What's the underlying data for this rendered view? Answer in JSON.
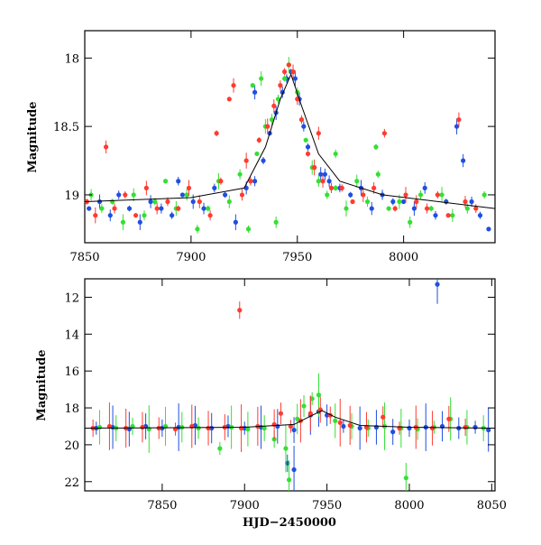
{
  "chart_data": [
    {
      "type": "scatter",
      "title": "",
      "xlabel": "",
      "ylabel": "Magnitude",
      "xlim": [
        7850,
        8043
      ],
      "ylim": [
        19.35,
        17.8
      ],
      "y_inverted": true,
      "grid": false,
      "x_ticks": [
        7850,
        7900,
        7950,
        8000
      ],
      "y_ticks": [
        18,
        18.5,
        19
      ],
      "series": [
        {
          "color": "#1f4fe0",
          "points": [
            [
              7852,
              19.1
            ],
            [
              7857,
              19.05
            ],
            [
              7862,
              19.15
            ],
            [
              7866,
              19.0
            ],
            [
              7871,
              19.1
            ],
            [
              7876,
              19.2
            ],
            [
              7881,
              19.05
            ],
            [
              7886,
              19.1
            ],
            [
              7891,
              19.15
            ],
            [
              7896,
              19.0
            ],
            [
              7901,
              19.05
            ],
            [
              7906,
              19.1
            ],
            [
              7911,
              18.95
            ],
            [
              7916,
              19.0
            ],
            [
              7921,
              19.2
            ],
            [
              7926,
              18.95
            ],
            [
              7930,
              18.9
            ],
            [
              7934,
              18.75
            ],
            [
              7937,
              18.55
            ],
            [
              7940,
              18.4
            ],
            [
              7943,
              18.25
            ],
            [
              7945,
              18.15
            ],
            [
              7947,
              18.1
            ],
            [
              7949,
              18.15
            ],
            [
              7951,
              18.3
            ],
            [
              7953,
              18.5
            ],
            [
              7955,
              18.65
            ],
            [
              7958,
              18.8
            ],
            [
              7961,
              18.85
            ],
            [
              7965,
              18.9
            ],
            [
              7970,
              18.95
            ],
            [
              7975,
              19.0
            ],
            [
              7980,
              18.95
            ],
            [
              7985,
              19.1
            ],
            [
              7990,
              19.0
            ],
            [
              7995,
              19.05
            ],
            [
              8000,
              19.05
            ],
            [
              8005,
              19.1
            ],
            [
              8010,
              18.95
            ],
            [
              8015,
              19.15
            ],
            [
              8020,
              19.05
            ],
            [
              8025,
              18.5
            ],
            [
              8028,
              18.75
            ],
            [
              8032,
              19.05
            ],
            [
              8036,
              19.15
            ],
            [
              8040,
              19.25
            ],
            [
              7930,
              18.25
            ],
            [
              7963,
              18.85
            ],
            [
              7894,
              18.9
            ]
          ]
        },
        {
          "color": "#33e033",
          "points": [
            [
              7853,
              19.0
            ],
            [
              7858,
              19.1
            ],
            [
              7863,
              19.05
            ],
            [
              7868,
              19.2
            ],
            [
              7873,
              19.0
            ],
            [
              7878,
              19.15
            ],
            [
              7883,
              19.05
            ],
            [
              7888,
              18.9
            ],
            [
              7893,
              19.1
            ],
            [
              7898,
              19.0
            ],
            [
              7903,
              19.25
            ],
            [
              7908,
              19.1
            ],
            [
              7913,
              18.9
            ],
            [
              7918,
              19.05
            ],
            [
              7923,
              18.85
            ],
            [
              7927,
              19.25
            ],
            [
              7931,
              18.7
            ],
            [
              7935,
              18.5
            ],
            [
              7938,
              18.45
            ],
            [
              7941,
              18.3
            ],
            [
              7944,
              18.15
            ],
            [
              7946,
              18.05
            ],
            [
              7948,
              18.1
            ],
            [
              7950,
              18.25
            ],
            [
              7952,
              18.45
            ],
            [
              7954,
              18.6
            ],
            [
              7957,
              18.8
            ],
            [
              7960,
              18.9
            ],
            [
              7964,
              19.0
            ],
            [
              7968,
              18.95
            ],
            [
              7973,
              19.1
            ],
            [
              7978,
              18.9
            ],
            [
              7983,
              19.05
            ],
            [
              7988,
              18.85
            ],
            [
              7993,
              19.1
            ],
            [
              7998,
              19.05
            ],
            [
              8003,
              19.2
            ],
            [
              8008,
              19.0
            ],
            [
              8013,
              19.1
            ],
            [
              8018,
              19.0
            ],
            [
              8023,
              19.15
            ],
            [
              8030,
              19.1
            ],
            [
              8038,
              19.0
            ],
            [
              7929,
              18.2
            ],
            [
              7933,
              18.15
            ],
            [
              7940,
              19.2
            ],
            [
              7968,
              18.7
            ],
            [
              7987,
              18.65
            ]
          ]
        },
        {
          "color": "#ff3b2f",
          "points": [
            [
              7851,
              19.05
            ],
            [
              7855,
              19.15
            ],
            [
              7860,
              18.65
            ],
            [
              7864,
              19.1
            ],
            [
              7869,
              19.0
            ],
            [
              7874,
              19.15
            ],
            [
              7879,
              18.95
            ],
            [
              7884,
              19.1
            ],
            [
              7889,
              19.05
            ],
            [
              7894,
              19.1
            ],
            [
              7899,
              18.95
            ],
            [
              7904,
              19.05
            ],
            [
              7909,
              19.15
            ],
            [
              7914,
              18.9
            ],
            [
              7918,
              18.3
            ],
            [
              7920,
              18.2
            ],
            [
              7924,
              19.0
            ],
            [
              7928,
              18.9
            ],
            [
              7932,
              18.6
            ],
            [
              7936,
              18.5
            ],
            [
              7939,
              18.35
            ],
            [
              7942,
              18.2
            ],
            [
              7944,
              18.1
            ],
            [
              7946,
              18.05
            ],
            [
              7948,
              18.1
            ],
            [
              7950,
              18.3
            ],
            [
              7952,
              18.45
            ],
            [
              7955,
              18.7
            ],
            [
              7958,
              18.8
            ],
            [
              7962,
              18.9
            ],
            [
              7966,
              18.95
            ],
            [
              7971,
              18.95
            ],
            [
              7976,
              19.05
            ],
            [
              7981,
              19.0
            ],
            [
              7986,
              18.95
            ],
            [
              7991,
              18.55
            ],
            [
              7996,
              19.1
            ],
            [
              8001,
              19.0
            ],
            [
              8006,
              19.05
            ],
            [
              8011,
              19.1
            ],
            [
              8016,
              19.0
            ],
            [
              8021,
              19.15
            ],
            [
              8026,
              18.45
            ],
            [
              8029,
              19.05
            ],
            [
              8034,
              19.1
            ],
            [
              7912,
              18.55
            ],
            [
              7926,
              18.75
            ],
            [
              7960,
              18.55
            ]
          ]
        }
      ],
      "model_curve": [
        [
          7850,
          19.05
        ],
        [
          7900,
          19.02
        ],
        [
          7925,
          18.95
        ],
        [
          7935,
          18.65
        ],
        [
          7942,
          18.3
        ],
        [
          7947,
          18.12
        ],
        [
          7952,
          18.35
        ],
        [
          7960,
          18.7
        ],
        [
          7970,
          18.9
        ],
        [
          7990,
          19.0
        ],
        [
          8043,
          19.1
        ]
      ]
    },
    {
      "type": "scatter",
      "title": "",
      "xlabel": "HJD−2450000",
      "ylabel": "Magnitude",
      "xlim": [
        7803,
        8052
      ],
      "ylim": [
        22.5,
        11
      ],
      "y_inverted": true,
      "grid": false,
      "x_ticks": [
        7850,
        7900,
        7950,
        8000,
        8050
      ],
      "y_ticks": [
        12,
        14,
        16,
        18,
        20,
        22
      ],
      "series": [
        {
          "color": "#1f4fe0",
          "points": [
            [
              7810,
              19.1
            ],
            [
              7820,
              19.05
            ],
            [
              7830,
              19.15
            ],
            [
              7840,
              19.0
            ],
            [
              7850,
              19.1
            ],
            [
              7860,
              19.05
            ],
            [
              7870,
              18.95
            ],
            [
              7880,
              19.1
            ],
            [
              7890,
              19.0
            ],
            [
              7900,
              19.1
            ],
            [
              7910,
              19.05
            ],
            [
              7920,
              19.0
            ],
            [
              7930,
              19.2
            ],
            [
              7926,
              21.0
            ],
            [
              7930,
              21.35
            ],
            [
              7940,
              18.4
            ],
            [
              7945,
              18.2
            ],
            [
              7950,
              18.4
            ],
            [
              7960,
              19.0
            ],
            [
              7970,
              19.1
            ],
            [
              7980,
              19.05
            ],
            [
              7990,
              19.3
            ],
            [
              8000,
              19.1
            ],
            [
              8010,
              19.05
            ],
            [
              8017,
              11.3
            ],
            [
              8020,
              19.0
            ],
            [
              8030,
              19.1
            ],
            [
              8040,
              19.05
            ],
            [
              8048,
              19.2
            ]
          ]
        },
        {
          "color": "#33e033",
          "points": [
            [
              7812,
              19.05
            ],
            [
              7822,
              19.1
            ],
            [
              7832,
              19.0
            ],
            [
              7842,
              19.15
            ],
            [
              7852,
              19.0
            ],
            [
              7862,
              19.05
            ],
            [
              7872,
              19.1
            ],
            [
              7885,
              20.2
            ],
            [
              7892,
              19.05
            ],
            [
              7902,
              19.15
            ],
            [
              7912,
              19.1
            ],
            [
              7918,
              19.7
            ],
            [
              7925,
              20.2
            ],
            [
              7927,
              21.9
            ],
            [
              7932,
              18.6
            ],
            [
              7936,
              17.9
            ],
            [
              7941,
              17.5
            ],
            [
              7945,
              17.3
            ],
            [
              7955,
              18.7
            ],
            [
              7965,
              19.0
            ],
            [
              7975,
              19.1
            ],
            [
              7985,
              19.0
            ],
            [
              7995,
              19.1
            ],
            [
              7998,
              21.8
            ],
            [
              8005,
              19.15
            ],
            [
              8015,
              19.05
            ],
            [
              8025,
              18.6
            ],
            [
              8035,
              19.05
            ],
            [
              8045,
              19.1
            ]
          ]
        },
        {
          "color": "#ff3b2f",
          "points": [
            [
              7808,
              19.1
            ],
            [
              7818,
              19.0
            ],
            [
              7828,
              19.1
            ],
            [
              7838,
              19.05
            ],
            [
              7848,
              19.1
            ],
            [
              7858,
              19.15
            ],
            [
              7868,
              19.0
            ],
            [
              7878,
              19.1
            ],
            [
              7888,
              19.05
            ],
            [
              7897,
              12.7
            ],
            [
              7898,
              19.1
            ],
            [
              7908,
              19.0
            ],
            [
              7918,
              18.9
            ],
            [
              7922,
              18.3
            ],
            [
              7928,
              19.0
            ],
            [
              7934,
              18.7
            ],
            [
              7940,
              18.3
            ],
            [
              7946,
              18.1
            ],
            [
              7952,
              18.4
            ],
            [
              7958,
              18.8
            ],
            [
              7964,
              18.95
            ],
            [
              7974,
              19.05
            ],
            [
              7984,
              18.5
            ],
            [
              7994,
              19.1
            ],
            [
              8004,
              19.05
            ],
            [
              8014,
              19.1
            ],
            [
              8024,
              18.6
            ],
            [
              8034,
              19.05
            ]
          ]
        }
      ],
      "model_curve": [
        [
          7803,
          19.1
        ],
        [
          7900,
          19.05
        ],
        [
          7930,
          18.9
        ],
        [
          7940,
          18.45
        ],
        [
          7947,
          18.15
        ],
        [
          7955,
          18.5
        ],
        [
          7970,
          18.95
        ],
        [
          8000,
          19.05
        ],
        [
          8052,
          19.1
        ]
      ]
    }
  ]
}
